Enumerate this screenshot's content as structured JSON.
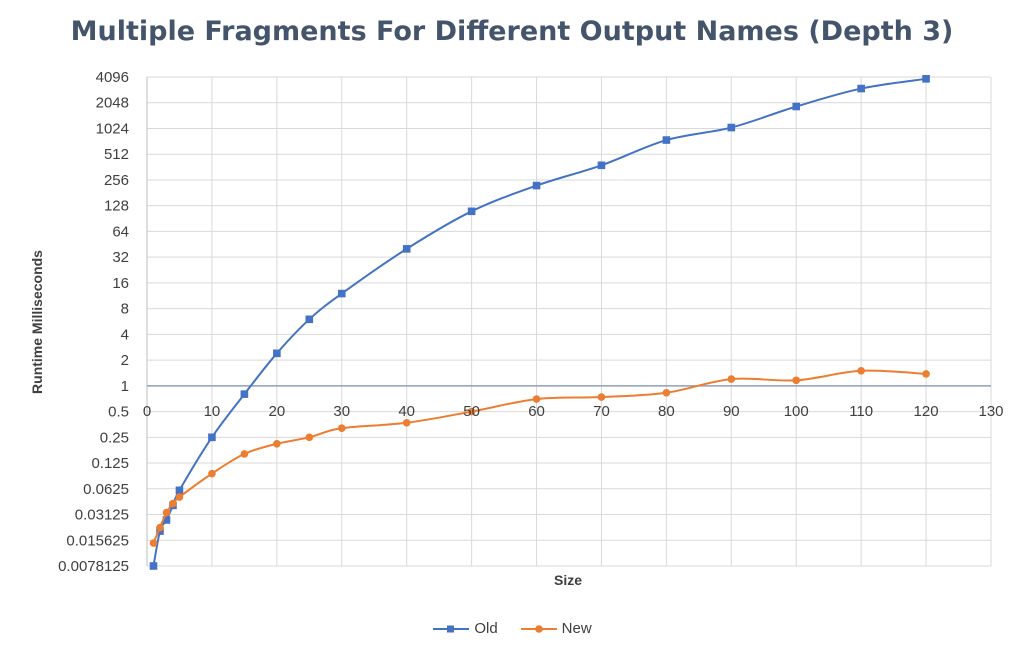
{
  "chart_data": {
    "type": "line",
    "title": "Multiple Fragments For Different Output Names (Depth 3)",
    "xlabel": "Size",
    "ylabel": "Runtime Milliseconds",
    "x_axis": {
      "min": 0,
      "max": 130,
      "step": 10,
      "tick_labels": [
        "0",
        "10",
        "20",
        "30",
        "40",
        "50",
        "60",
        "70",
        "80",
        "90",
        "100",
        "110",
        "120",
        "130"
      ]
    },
    "y_axis": {
      "scale": "log2",
      "min": 0.0078125,
      "max": 4096,
      "crosses_at": 1,
      "tick_labels": [
        "0.0078125",
        "0.015625",
        "0.03125",
        "0.0625",
        "0.125",
        "0.25",
        "0.5",
        "1",
        "2",
        "4",
        "8",
        "16",
        "32",
        "64",
        "128",
        "256",
        "512",
        "1024",
        "2048",
        "4096"
      ]
    },
    "grid": true,
    "legend_position": "bottom",
    "series": [
      {
        "name": "Old",
        "color": "#4472c4",
        "marker": "square",
        "x": [
          1,
          2,
          3,
          4,
          5,
          10,
          15,
          20,
          25,
          30,
          40,
          50,
          60,
          70,
          80,
          90,
          100,
          110,
          120
        ],
        "y": [
          0.0078125,
          0.02,
          0.027,
          0.04,
          0.06,
          0.25,
          0.8,
          2.4,
          6,
          12,
          40,
          110,
          220,
          380,
          750,
          1050,
          1850,
          3000,
          3900
        ]
      },
      {
        "name": "New",
        "color": "#ed7d31",
        "marker": "circle",
        "x": [
          1,
          2,
          3,
          4,
          5,
          10,
          15,
          20,
          25,
          30,
          40,
          50,
          60,
          70,
          80,
          90,
          100,
          110,
          120
        ],
        "y": [
          0.0145,
          0.022,
          0.033,
          0.042,
          0.05,
          0.094,
          0.16,
          0.21,
          0.25,
          0.32,
          0.37,
          0.5,
          0.7,
          0.74,
          0.83,
          1.2,
          1.16,
          1.5,
          1.38
        ]
      }
    ]
  }
}
